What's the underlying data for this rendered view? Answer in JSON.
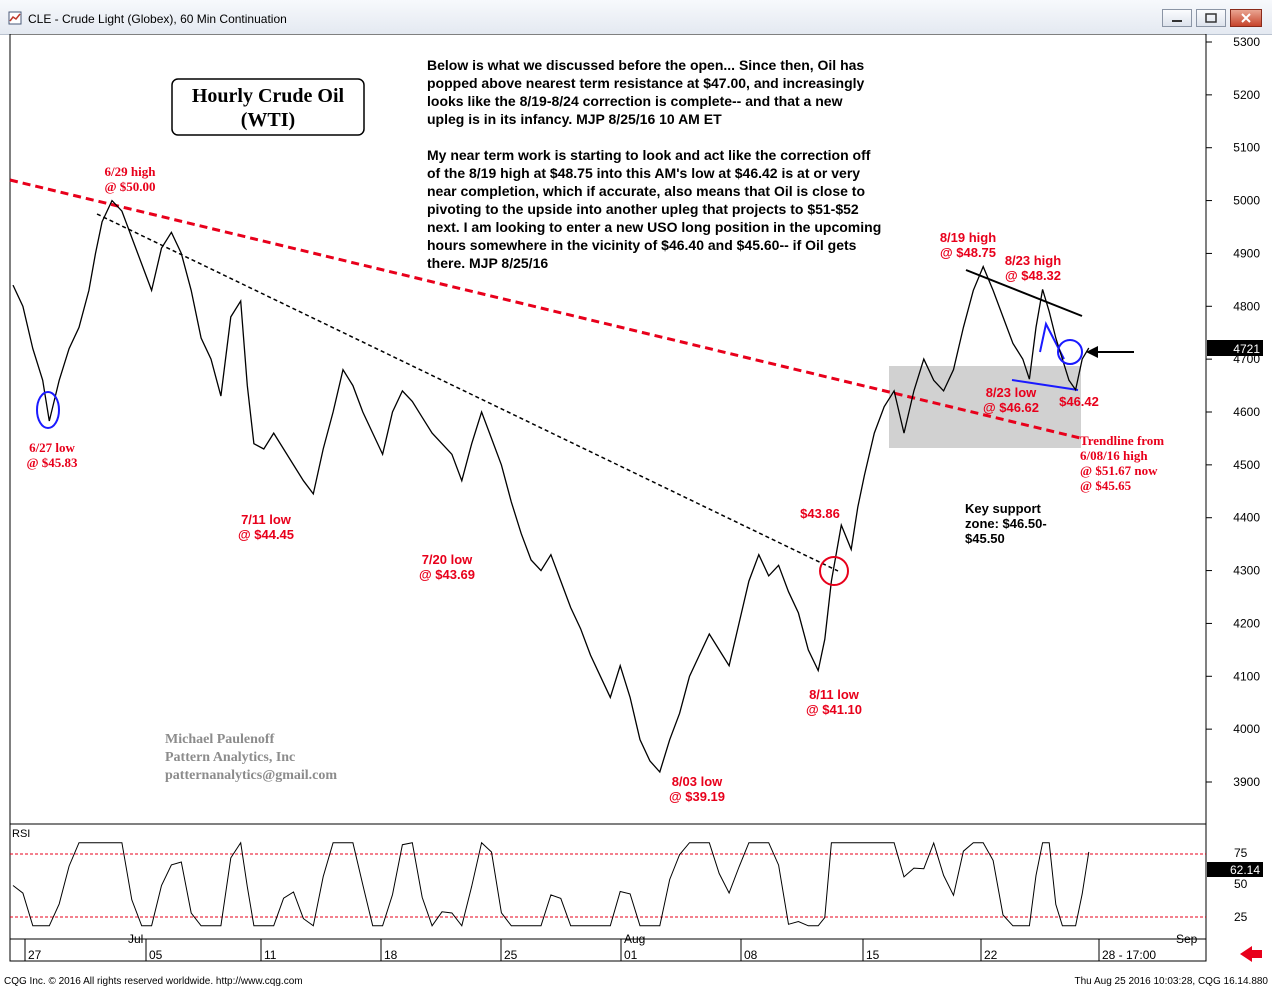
{
  "window": {
    "title": "CLE - Crude Light (Globex), 60 Min Continuation",
    "status_left": "CQG Inc. © 2016 All rights reserved worldwide. http://www.cqg.com",
    "status_right": "Thu Aug 25 2016 10:03:28, CQG 16.14.880"
  },
  "colors": {
    "price": "#000000",
    "annotation_red": "#e8001b",
    "trend_red": "#e8001b",
    "blue_marks": "#1a1aff",
    "rsi_band": "#e8001b",
    "grid": "#000000",
    "zone": "#9a9a9a"
  },
  "chart_box": {
    "title_line1": "Hourly Crude Oil",
    "title_line2": "(WTI)"
  },
  "commentary": {
    "lines": [
      "Below is what we discussed before the open... Since then, Oil has",
      "popped above nearest term resistance at $47.00, and increasingly",
      "looks like the 8/19-8/24 correction is complete-- and that a new",
      "upleg is in its infancy.  MJP 8/25/16 10 AM ET",
      "",
      "My near term work is starting to look and act like the correction off",
      "of the 8/19 high at $48.75 into this AM's low at $46.42 is at or very",
      "near completion, which if accurate, also means that Oil is close to",
      "pivoting to the upside into another upleg that projects to $51-$52",
      "next. I am looking to enter a new USO long position in the upcoming",
      "hours somewhere in the vicinity of $46.40 and $45.60-- if Oil gets",
      "there. MJP 8/25/16"
    ]
  },
  "author": {
    "name": "Michael Paulenoff",
    "company": "Pattern Analytics, Inc",
    "email": "patternanalytics@gmail.com"
  },
  "chart_data": {
    "type": "line",
    "series_name": "CLE 60 Min",
    "y_axis_ticks": [
      "5300",
      "5200",
      "5100",
      "5000",
      "4900",
      "4800",
      "4700",
      "4600",
      "4500",
      "4400",
      "4300",
      "4200",
      "4100",
      "4000",
      "3900"
    ],
    "last_price": "4721",
    "x_axis_day_labels": [
      "27",
      "05",
      "11",
      "18",
      "25",
      "01",
      "08",
      "15",
      "22",
      "28 - 17:00"
    ],
    "x_axis_month_labels": [
      "Jul",
      "Aug",
      "Sep"
    ],
    "price_path": [
      [
        0,
        4840
      ],
      [
        3,
        4800
      ],
      [
        6,
        4720
      ],
      [
        9,
        4660
      ],
      [
        11,
        4583
      ],
      [
        14,
        4660
      ],
      [
        17,
        4720
      ],
      [
        20,
        4760
      ],
      [
        23,
        4830
      ],
      [
        25,
        4900
      ],
      [
        27,
        4960
      ],
      [
        30,
        5000
      ],
      [
        33,
        4980
      ],
      [
        36,
        4930
      ],
      [
        39,
        4880
      ],
      [
        42,
        4830
      ],
      [
        45,
        4910
      ],
      [
        48,
        4940
      ],
      [
        51,
        4900
      ],
      [
        54,
        4830
      ],
      [
        57,
        4740
      ],
      [
        60,
        4700
      ],
      [
        63,
        4630
      ],
      [
        66,
        4780
      ],
      [
        69,
        4810
      ],
      [
        71,
        4650
      ],
      [
        73,
        4540
      ],
      [
        76,
        4530
      ],
      [
        79,
        4560
      ],
      [
        82,
        4530
      ],
      [
        85,
        4500
      ],
      [
        88,
        4470
      ],
      [
        91,
        4445
      ],
      [
        94,
        4530
      ],
      [
        97,
        4600
      ],
      [
        100,
        4680
      ],
      [
        103,
        4650
      ],
      [
        106,
        4600
      ],
      [
        109,
        4560
      ],
      [
        112,
        4520
      ],
      [
        115,
        4600
      ],
      [
        118,
        4640
      ],
      [
        121,
        4620
      ],
      [
        124,
        4590
      ],
      [
        127,
        4560
      ],
      [
        130,
        4540
      ],
      [
        133,
        4520
      ],
      [
        136,
        4470
      ],
      [
        139,
        4540
      ],
      [
        142,
        4600
      ],
      [
        145,
        4550
      ],
      [
        148,
        4500
      ],
      [
        151,
        4430
      ],
      [
        154,
        4370
      ],
      [
        157,
        4320
      ],
      [
        160,
        4300
      ],
      [
        163,
        4330
      ],
      [
        166,
        4280
      ],
      [
        169,
        4230
      ],
      [
        172,
        4190
      ],
      [
        175,
        4140
      ],
      [
        178,
        4100
      ],
      [
        181,
        4060
      ],
      [
        184,
        4120
      ],
      [
        187,
        4060
      ],
      [
        190,
        3980
      ],
      [
        193,
        3940
      ],
      [
        196,
        3919
      ],
      [
        199,
        3980
      ],
      [
        202,
        4030
      ],
      [
        205,
        4100
      ],
      [
        208,
        4140
      ],
      [
        211,
        4180
      ],
      [
        214,
        4150
      ],
      [
        217,
        4120
      ],
      [
        220,
        4200
      ],
      [
        223,
        4280
      ],
      [
        226,
        4330
      ],
      [
        229,
        4290
      ],
      [
        232,
        4310
      ],
      [
        235,
        4260
      ],
      [
        238,
        4220
      ],
      [
        241,
        4150
      ],
      [
        244,
        4111
      ],
      [
        246,
        4170
      ],
      [
        248,
        4280
      ],
      [
        251,
        4386
      ],
      [
        254,
        4340
      ],
      [
        256,
        4420
      ],
      [
        258,
        4480
      ],
      [
        261,
        4560
      ],
      [
        264,
        4610
      ],
      [
        267,
        4640
      ],
      [
        270,
        4560
      ],
      [
        273,
        4640
      ],
      [
        276,
        4700
      ],
      [
        279,
        4660
      ],
      [
        282,
        4640
      ],
      [
        285,
        4680
      ],
      [
        288,
        4760
      ],
      [
        291,
        4830
      ],
      [
        294,
        4875
      ],
      [
        297,
        4830
      ],
      [
        300,
        4780
      ],
      [
        303,
        4730
      ],
      [
        306,
        4700
      ],
      [
        308,
        4662
      ],
      [
        310,
        4760
      ],
      [
        312,
        4832
      ],
      [
        314,
        4790
      ],
      [
        316,
        4740
      ],
      [
        318,
        4700
      ],
      [
        320,
        4660
      ],
      [
        322,
        4642
      ],
      [
        324,
        4700
      ],
      [
        326,
        4721
      ]
    ],
    "annotations": [
      {
        "text_lines": [
          "6/29 high",
          "@ $50.00"
        ],
        "color": "red"
      },
      {
        "text_lines": [
          "6/27 low",
          "@ $45.83"
        ],
        "color": "red"
      },
      {
        "text_lines": [
          "7/11 low",
          "@ $44.45"
        ],
        "color": "red"
      },
      {
        "text_lines": [
          "7/20 low",
          "@ $43.69"
        ],
        "color": "red"
      },
      {
        "text_lines": [
          "8/03 low",
          "@ $39.19"
        ],
        "color": "red"
      },
      {
        "text_lines": [
          "8/11 low",
          "@ $41.10"
        ],
        "color": "red"
      },
      {
        "text_lines": [
          "$43.86"
        ],
        "color": "red"
      },
      {
        "text_lines": [
          "8/19 high",
          "@ $48.75"
        ],
        "color": "red"
      },
      {
        "text_lines": [
          "8/23 high",
          "@ $48.32"
        ],
        "color": "red"
      },
      {
        "text_lines": [
          "8/23 low",
          "@ $46.62"
        ],
        "color": "red"
      },
      {
        "text_lines": [
          "$46.42"
        ],
        "color": "red"
      },
      {
        "text_lines": [
          "Trendline from",
          "6/08/16 high",
          "@ $51.67 now",
          "@ $45.65"
        ],
        "color": "red"
      },
      {
        "text_lines": [
          "Key support",
          "zone: $46.50-",
          "$45.50"
        ],
        "color": "black"
      }
    ],
    "rsi": {
      "label": "RSI",
      "levels": [
        "75",
        "50",
        "25"
      ],
      "last_value": "62.14",
      "upper_band": 75,
      "lower_band": 25
    },
    "grid": false,
    "legend": "none"
  }
}
